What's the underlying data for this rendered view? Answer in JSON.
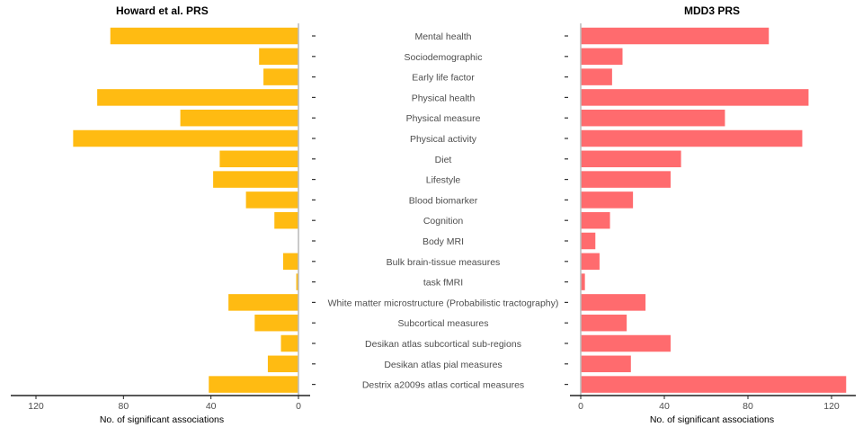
{
  "chart_data": [
    {
      "type": "bar",
      "orientation": "horizontal",
      "direction": "reversed",
      "title": "Howard et al. PRS",
      "xlabel": "No. of significant associations",
      "xlim": [
        0,
        128
      ],
      "xticks": [
        0,
        40,
        80,
        120
      ],
      "color": "#FFBB12",
      "categories": [
        "Mental health",
        "Sociodemographic",
        "Early life factor",
        "Physical health",
        "Physical measure",
        "Physical activity",
        "Diet",
        "Lifestyle",
        "Blood biomarker",
        "Cognition",
        "Body MRI",
        "Bulk brain-tissue measures",
        "task fMRI",
        "White matter microstructure (Probabilistic tractography)",
        "Subcortical measures",
        "Desikan atlas subcortical sub-regions",
        "Desikan atlas pial measures",
        "Destrix a2009s atlas cortical measures"
      ],
      "values": [
        86,
        18,
        16,
        92,
        54,
        103,
        36,
        39,
        24,
        11,
        0,
        7,
        1,
        32,
        20,
        8,
        14,
        41
      ]
    },
    {
      "type": "bar",
      "orientation": "horizontal",
      "title": "MDD3 PRS",
      "xlabel": "No. of significant associations",
      "xlim": [
        0,
        130
      ],
      "xticks": [
        0,
        40,
        80,
        120
      ],
      "color": "#FF6B6E",
      "categories": [
        "Mental health",
        "Sociodemographic",
        "Early life factor",
        "Physical health",
        "Physical measure",
        "Physical activity",
        "Diet",
        "Lifestyle",
        "Blood biomarker",
        "Cognition",
        "Body MRI",
        "Bulk brain-tissue measures",
        "task fMRI",
        "White matter microstructure (Probabilistic tractography)",
        "Subcortical measures",
        "Desikan atlas subcortical sub-regions",
        "Desikan atlas pial measures",
        "Destrix a2009s atlas cortical measures"
      ],
      "values": [
        90,
        20,
        15,
        109,
        69,
        106,
        48,
        43,
        25,
        14,
        7,
        9,
        2,
        31,
        22,
        43,
        24,
        127
      ]
    }
  ]
}
